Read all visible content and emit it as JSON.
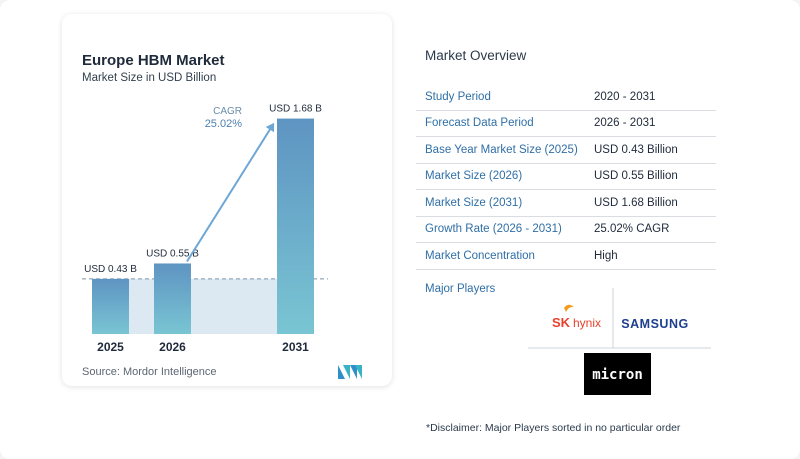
{
  "chart_data": {
    "type": "bar",
    "title": "Europe HBM Market",
    "subtitle": "Market Size in USD Billion",
    "categories": [
      "2025",
      "2026",
      "2031"
    ],
    "values": [
      0.43,
      0.55,
      1.68
    ],
    "data_labels": [
      "USD 0.43 B",
      "USD 0.55 B",
      "USD 1.68 B"
    ],
    "cagr_label": "CAGR",
    "cagr_value": "25.02%",
    "ylim": [
      0,
      1.7
    ],
    "colors": {
      "bar_top": "#5e94c2",
      "bar_bottom": "#79c5d3",
      "shade": "#dce8f2",
      "arrow": "#6ea7d6"
    }
  },
  "source": "Source:  Mordor Intelligence",
  "overview": {
    "title": "Market Overview",
    "rows": [
      {
        "k": "Study Period",
        "v": "2020 - 2031"
      },
      {
        "k": "Forecast Data Period",
        "v": "2026 - 2031"
      },
      {
        "k": "Base Year Market Size (2025)",
        "v": "USD 0.43 Billion"
      },
      {
        "k": "Market Size (2026)",
        "v": "USD 0.55 Billion"
      },
      {
        "k": "Market Size (2031)",
        "v": "USD 1.68 Billion"
      },
      {
        "k": "Growth Rate (2026 - 2031)",
        "v": "25.02% CAGR"
      },
      {
        "k": "Market Concentration",
        "v": "High"
      }
    ]
  },
  "players": {
    "title": "Major Players",
    "sk_mark": "SK",
    "sk_name": "hynix",
    "samsung": "SAMSUNG",
    "micron": "micron"
  },
  "disclaimer": "*Disclaimer: Major Players sorted in no particular order"
}
